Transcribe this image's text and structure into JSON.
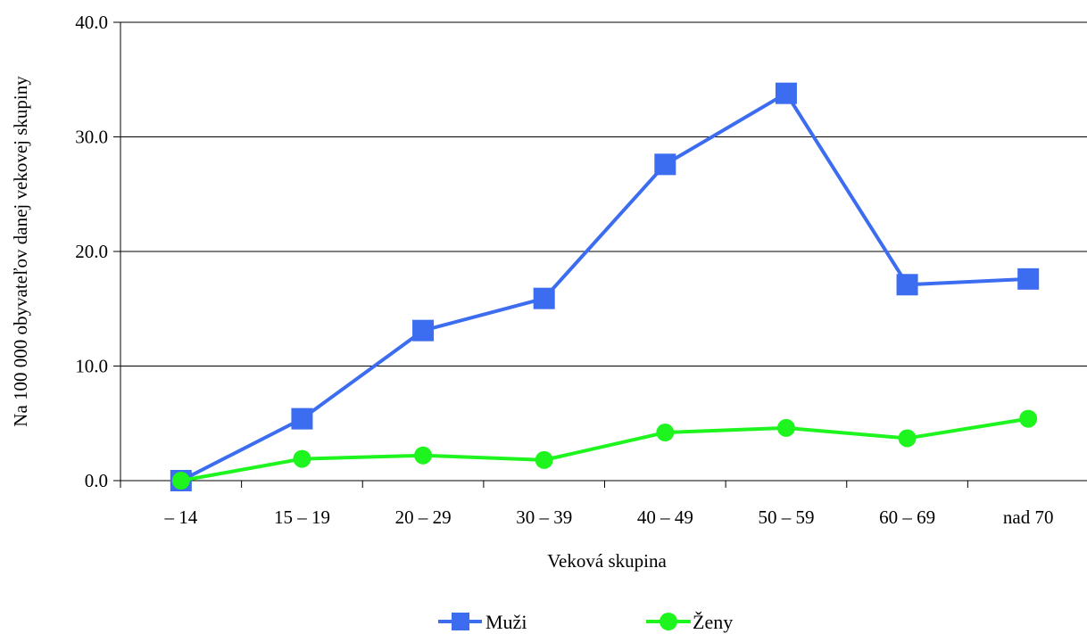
{
  "chart_data": {
    "type": "line",
    "categories": [
      "– 14",
      "15 – 19",
      "20 – 29",
      "30 – 39",
      "40 – 49",
      "50 – 59",
      "60 – 69",
      "nad 70"
    ],
    "series": [
      {
        "name": "Muži",
        "values": [
          0.0,
          5.4,
          13.1,
          15.9,
          27.6,
          33.8,
          17.1,
          17.6
        ],
        "color": "#3c6df0",
        "marker": "square"
      },
      {
        "name": "Ženy",
        "values": [
          0.0,
          1.9,
          2.2,
          1.8,
          4.2,
          4.6,
          3.7,
          5.4
        ],
        "color": "#1ef51e",
        "marker": "circle"
      }
    ],
    "xlabel": "Veková skupina",
    "ylabel": "Na 100 000 obyvateľov danej vekovej skupiny",
    "ylim": [
      0,
      40
    ],
    "yticks": [
      "0.0",
      "10.0",
      "20.0",
      "30.0",
      "40.0"
    ],
    "grid": true,
    "legend_position": "bottom"
  }
}
